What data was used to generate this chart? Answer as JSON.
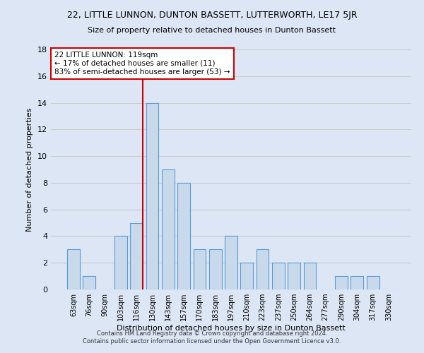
{
  "title": "22, LITTLE LUNNON, DUNTON BASSETT, LUTTERWORTH, LE17 5JR",
  "subtitle": "Size of property relative to detached houses in Dunton Bassett",
  "xlabel": "Distribution of detached houses by size in Dunton Bassett",
  "ylabel": "Number of detached properties",
  "categories": [
    "63sqm",
    "76sqm",
    "90sqm",
    "103sqm",
    "116sqm",
    "130sqm",
    "143sqm",
    "157sqm",
    "170sqm",
    "183sqm",
    "197sqm",
    "210sqm",
    "223sqm",
    "237sqm",
    "250sqm",
    "264sqm",
    "277sqm",
    "290sqm",
    "304sqm",
    "317sqm",
    "330sqm"
  ],
  "values": [
    3,
    1,
    0,
    4,
    5,
    14,
    9,
    8,
    3,
    3,
    4,
    2,
    3,
    2,
    2,
    2,
    0,
    1,
    1,
    1,
    0
  ],
  "bar_color": "#c9d9ec",
  "bar_edge_color": "#5b9bd5",
  "vline_bin_index": 4,
  "annotation_text1": "22 LITTLE LUNNON: 119sqm",
  "annotation_text2": "← 17% of detached houses are smaller (11)",
  "annotation_text3": "83% of semi-detached houses are larger (53) →",
  "annotation_box_color": "#ffffff",
  "annotation_box_edge_color": "#cc0000",
  "vline_color": "#cc0000",
  "ylim": [
    0,
    18
  ],
  "yticks": [
    0,
    2,
    4,
    6,
    8,
    10,
    12,
    14,
    16,
    18
  ],
  "grid_color": "#cccccc",
  "background_color": "#dce6f5",
  "footer1": "Contains HM Land Registry data © Crown copyright and database right 2024.",
  "footer2": "Contains public sector information licensed under the Open Government Licence v3.0."
}
